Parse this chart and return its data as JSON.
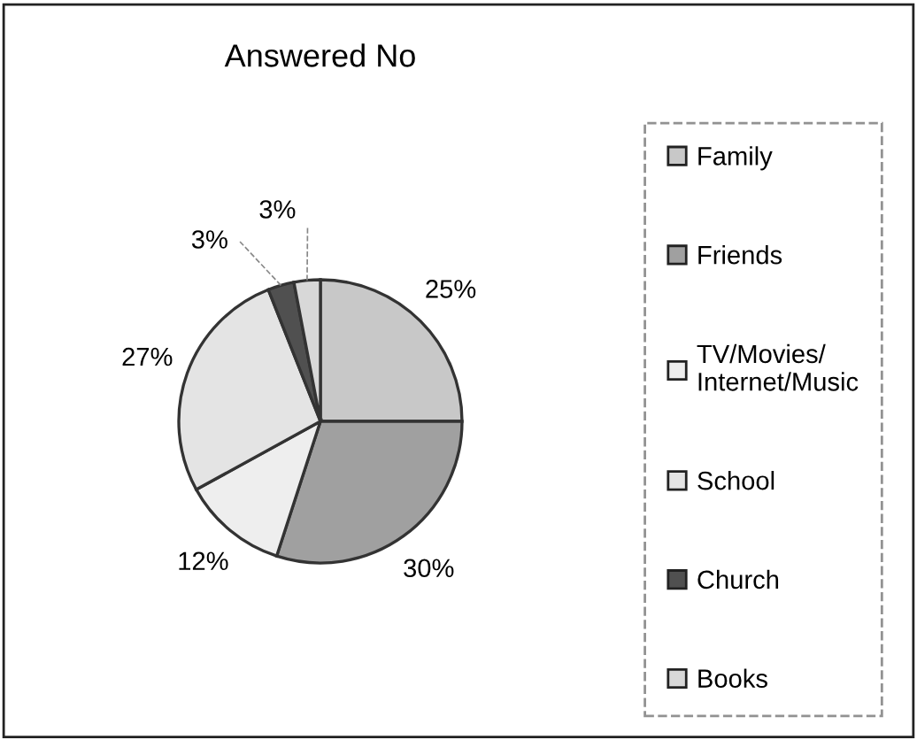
{
  "chart_data": {
    "type": "pie",
    "title": "Answered No",
    "categories": [
      "Family",
      "Friends",
      "TV/Movies/\nInternet/Music",
      "School",
      "Church",
      "Books"
    ],
    "values": [
      25,
      30,
      12,
      27,
      3,
      3
    ],
    "colors": [
      "#c8c8c8",
      "#a0a0a0",
      "#eeeeee",
      "#e4e4e4",
      "#505050",
      "#d8d8d8"
    ],
    "value_labels": [
      "25%",
      "30%",
      "12%",
      "27%",
      "3%",
      "3%"
    ],
    "legend": "right"
  }
}
